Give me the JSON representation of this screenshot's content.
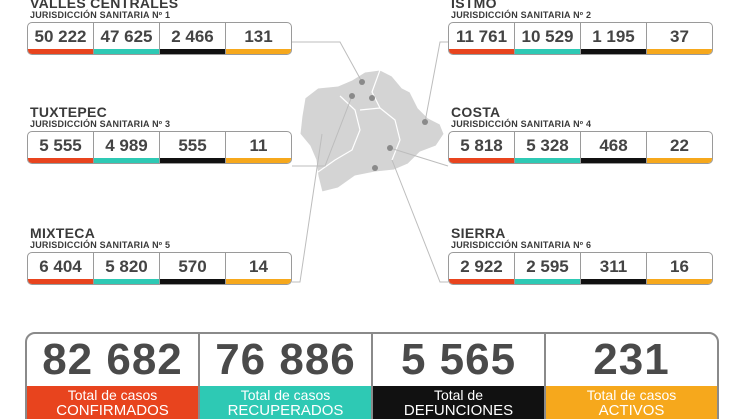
{
  "regions": [
    {
      "name": "VALLES CENTRALES",
      "jurisdiction": "JURISDICCIÓN SANITARIA Nº 1",
      "values": [
        "50 222",
        "47 625",
        "2 466",
        "131"
      ]
    },
    {
      "name": "ISTMO",
      "jurisdiction": "JURISDICCIÓN SANITARIA Nº 2",
      "values": [
        "11 761",
        "10 529",
        "1 195",
        "37"
      ]
    },
    {
      "name": "TUXTEPEC",
      "jurisdiction": "JURISDICCIÓN SANITARIA Nº 3",
      "values": [
        "5 555",
        "4 989",
        "555",
        "11"
      ]
    },
    {
      "name": "COSTA",
      "jurisdiction": "JURISDICCIÓN SANITARIA Nº 4",
      "values": [
        "5 818",
        "5 328",
        "468",
        "22"
      ]
    },
    {
      "name": "MIXTECA",
      "jurisdiction": "JURISDICCIÓN SANITARIA Nº 5",
      "values": [
        "6 404",
        "5 820",
        "570",
        "14"
      ]
    },
    {
      "name": "SIERRA",
      "jurisdiction": "JURISDICCIÓN SANITARIA Nº 6",
      "values": [
        "2 922",
        "2 595",
        "311",
        "16"
      ]
    }
  ],
  "totals": [
    {
      "number": "82 682",
      "label": [
        "Total de casos",
        "CONFIRMADOS"
      ]
    },
    {
      "number": "76 886",
      "label": [
        "Total de casos",
        "RECUPERADOS"
      ]
    },
    {
      "number": "5 565",
      "label": [
        "Total de",
        "DEFUNCIONES"
      ]
    },
    {
      "number": "231",
      "label": [
        "Total de casos",
        "ACTIVOS"
      ]
    }
  ]
}
